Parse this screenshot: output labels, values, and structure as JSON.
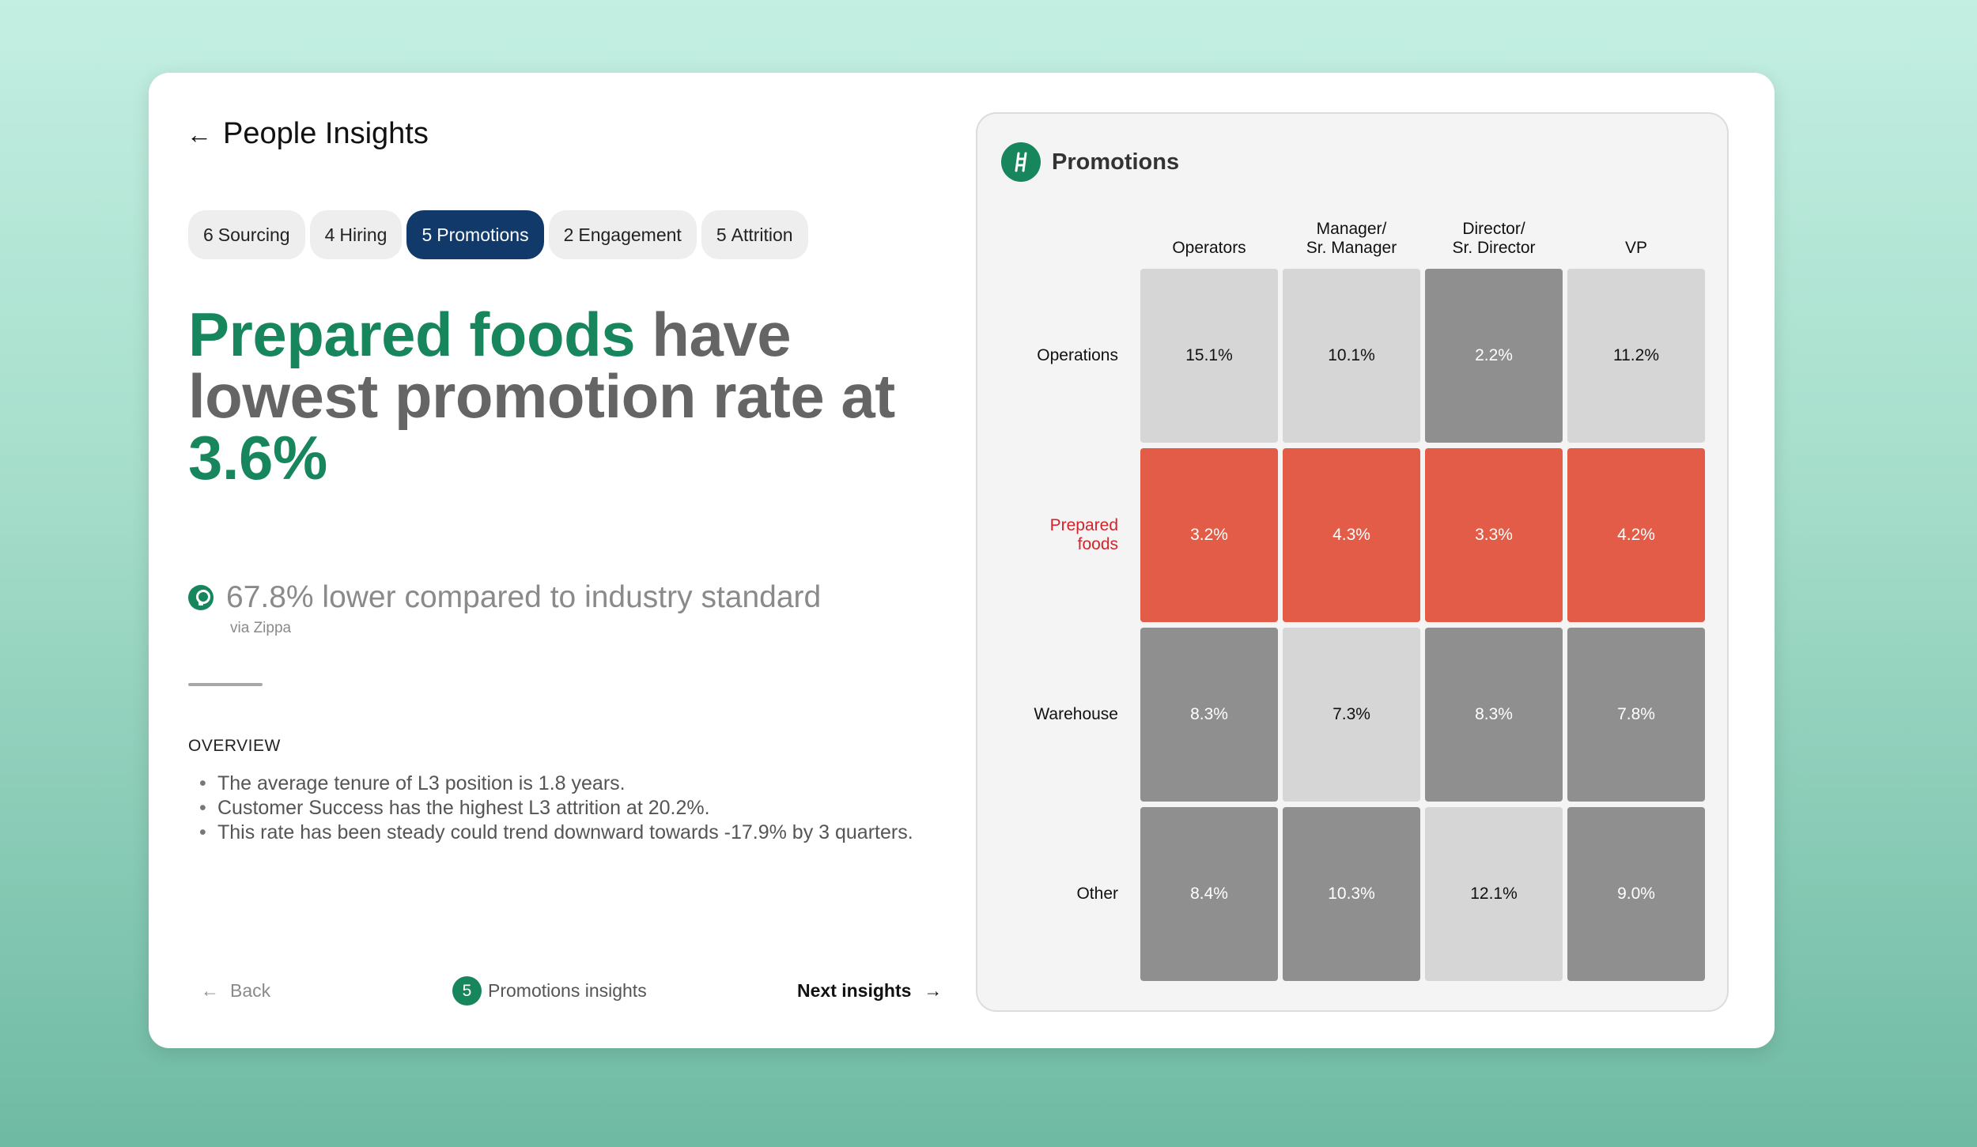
{
  "header": {
    "title": "People Insights",
    "back_icon": "arrow-left-icon"
  },
  "tabs": [
    {
      "count": "6",
      "label": "Sourcing",
      "active": false
    },
    {
      "count": "4",
      "label": "Hiring",
      "active": false
    },
    {
      "count": "5",
      "label": "Promotions",
      "active": true
    },
    {
      "count": "2",
      "label": "Engagement",
      "active": false
    },
    {
      "count": "5",
      "label": "Attrition",
      "active": false
    }
  ],
  "headline": {
    "highlight": "Prepared foods",
    "rest": " have lowest promotion rate at ",
    "value": "3.6%"
  },
  "insight": {
    "text": "67.8% lower compared to industry standard",
    "source": "via Zippa",
    "icon": "lightbulb-icon"
  },
  "overview": {
    "heading": "OVERVIEW",
    "items": [
      "The average tenure of L3 position is 1.8 years.",
      "Customer Success has the highest L3 attrition at 20.2%.",
      "This rate has been steady could trend downward towards -17.9% by 3 quarters."
    ]
  },
  "footer": {
    "back_label": "Back",
    "insight_count": "5",
    "insight_label": "Promotions insights",
    "next_label": "Next insights"
  },
  "panel": {
    "title": "Promotions",
    "icon": "ladder-icon"
  },
  "colors": {
    "accent": "#17865d",
    "active_tab": "#113a6b",
    "alert": "#e35c47",
    "alert_text": "#d4232b",
    "cell_light": "#d6d6d6",
    "cell_dark": "#8f8f8f"
  },
  "chart_data": {
    "type": "heatmap",
    "columns": [
      "Operators",
      "Manager/\nSr. Manager",
      "Director/\nSr. Director",
      "VP"
    ],
    "rows": [
      {
        "label": "Operations",
        "highlight": false,
        "values": [
          15.1,
          10.1,
          2.2,
          11.2
        ],
        "shades": [
          "light",
          "light",
          "dark",
          "light"
        ]
      },
      {
        "label": "Prepared\nfoods",
        "highlight": true,
        "values": [
          3.2,
          4.3,
          3.3,
          4.2
        ],
        "shades": [
          "red",
          "red",
          "red",
          "red"
        ]
      },
      {
        "label": "Warehouse",
        "highlight": false,
        "values": [
          8.3,
          7.3,
          8.3,
          7.8
        ],
        "shades": [
          "dark",
          "light",
          "dark",
          "dark"
        ]
      },
      {
        "label": "Other",
        "highlight": false,
        "values": [
          8.4,
          10.3,
          12.1,
          9.0
        ],
        "shades": [
          "dark",
          "dark",
          "light",
          "dark"
        ]
      }
    ],
    "unit": "%"
  }
}
